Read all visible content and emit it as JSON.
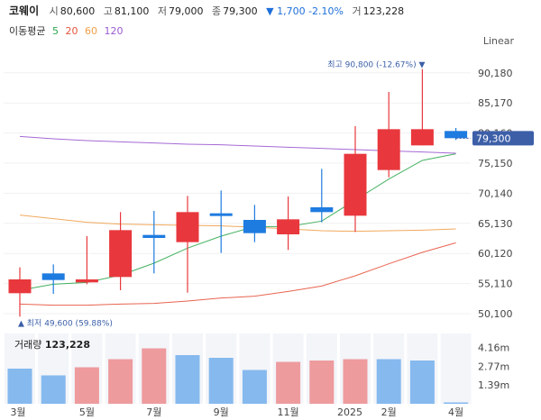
{
  "header": {
    "stock_name": "코웨이",
    "open_label": "시",
    "open_value": "80,600",
    "high_label": "고",
    "high_value": "81,100",
    "low_label": "저",
    "low_value": "79,000",
    "close_label": "종",
    "close_value": "79,300",
    "change_text": "▼ 1,700 -2.10%",
    "volume_label": "거",
    "volume_value": "123,228"
  },
  "moving_average": {
    "title": "이동평균",
    "periods": [
      {
        "label": "5",
        "color": "#2fa84f"
      },
      {
        "label": "20",
        "color": "#e5533d"
      },
      {
        "label": "60",
        "color": "#f0a04b"
      },
      {
        "label": "120",
        "color": "#9b59d0"
      }
    ]
  },
  "scale_mode": "Linear",
  "colors": {
    "up": "#e8383d",
    "down": "#1e7be0",
    "grid": "#f0f0f0",
    "current_price_bg": "#3c5fa8",
    "vol_up": "#ee9b9e",
    "vol_down": "#86b9ee"
  },
  "chart_data": {
    "type": "candlestick",
    "price_axis": {
      "min": 48000,
      "max": 93000,
      "ticks": [
        "90,180",
        "85,170",
        "80,160",
        "75,150",
        "70,140",
        "65,130",
        "60,120",
        "55,110",
        "50,100"
      ],
      "tick_values": [
        90180,
        85170,
        80160,
        75150,
        70140,
        65130,
        60120,
        55110,
        50100
      ]
    },
    "current_price": "79,300",
    "current_price_value": 79300,
    "high_annotation": "최고 90,800 (-12.67%)",
    "high_value": 90800,
    "low_annotation": "최저 49,600 (59.88%)",
    "low_value": 49600,
    "candles": [
      {
        "open": 53500,
        "close": 55800,
        "high": 57800,
        "low": 49600,
        "dir": "up"
      },
      {
        "open": 56800,
        "close": 55700,
        "high": 58300,
        "low": 53400,
        "dir": "down"
      },
      {
        "open": 55300,
        "close": 55800,
        "high": 63000,
        "low": 55000,
        "dir": "up"
      },
      {
        "open": 56200,
        "close": 64000,
        "high": 67000,
        "low": 54000,
        "dir": "up"
      },
      {
        "open": 63200,
        "close": 62700,
        "high": 67200,
        "low": 56800,
        "dir": "down"
      },
      {
        "open": 62000,
        "close": 67000,
        "high": 69700,
        "low": 53600,
        "dir": "up"
      },
      {
        "open": 66800,
        "close": 66600,
        "high": 70600,
        "low": 60200,
        "dir": "down"
      },
      {
        "open": 65700,
        "close": 63500,
        "high": 68200,
        "low": 62000,
        "dir": "down"
      },
      {
        "open": 63300,
        "close": 65800,
        "high": 69600,
        "low": 60700,
        "dir": "up"
      },
      {
        "open": 67800,
        "close": 67000,
        "high": 74200,
        "low": 65300,
        "dir": "down"
      },
      {
        "open": 66400,
        "close": 76700,
        "high": 81300,
        "low": 63700,
        "dir": "up"
      },
      {
        "open": 74000,
        "close": 80800,
        "high": 87000,
        "low": 72800,
        "dir": "up"
      },
      {
        "open": 78100,
        "close": 80800,
        "high": 90800,
        "low": 78100,
        "dir": "up"
      },
      {
        "open": 80500,
        "close": 79300,
        "high": 81000,
        "low": 79000,
        "dir": "down"
      }
    ],
    "ma_series": [
      {
        "name": "5",
        "color": "#2fa84f",
        "values": [
          54000,
          55000,
          55300,
          56500,
          58500,
          61000,
          63000,
          64600,
          64600,
          65500,
          69000,
          72500,
          75600,
          76700
        ]
      },
      {
        "name": "20",
        "color": "#e5533d",
        "values": [
          51700,
          51500,
          51500,
          51700,
          51800,
          52200,
          52700,
          53000,
          53800,
          54700,
          56400,
          58400,
          60300,
          61900
        ]
      },
      {
        "name": "60",
        "color": "#f0a04b",
        "values": [
          66500,
          65900,
          65300,
          65000,
          64900,
          64800,
          64700,
          64500,
          64200,
          63900,
          63800,
          63900,
          64000,
          64200
        ]
      },
      {
        "name": "120",
        "color": "#9b59d0",
        "values": [
          79600,
          79200,
          78900,
          78700,
          78500,
          78300,
          78200,
          78000,
          77800,
          77600,
          77400,
          77200,
          77000,
          76800
        ]
      }
    ],
    "volume": {
      "label": "거래량",
      "value": "123,228",
      "ticks": [
        "4.16m",
        "2.77m",
        "1.39m"
      ],
      "tick_values": [
        4.16,
        2.77,
        1.39
      ],
      "max": 5.2,
      "bars": [
        {
          "v": 2.6,
          "dir": "down"
        },
        {
          "v": 2.1,
          "dir": "down"
        },
        {
          "v": 2.7,
          "dir": "up"
        },
        {
          "v": 3.3,
          "dir": "up"
        },
        {
          "v": 4.1,
          "dir": "up"
        },
        {
          "v": 3.6,
          "dir": "down"
        },
        {
          "v": 3.4,
          "dir": "down"
        },
        {
          "v": 2.5,
          "dir": "down"
        },
        {
          "v": 3.1,
          "dir": "up"
        },
        {
          "v": 3.2,
          "dir": "up"
        },
        {
          "v": 3.3,
          "dir": "up"
        },
        {
          "v": 3.3,
          "dir": "down"
        },
        {
          "v": 3.2,
          "dir": "down"
        },
        {
          "v": 0.1,
          "dir": "down"
        }
      ]
    },
    "x_labels": [
      "3월",
      "5월",
      "7월",
      "9월",
      "11월",
      "2025",
      "2월",
      "4월"
    ],
    "x_label_positions": [
      0,
      2,
      4,
      6,
      8,
      10,
      11,
      13
    ]
  }
}
